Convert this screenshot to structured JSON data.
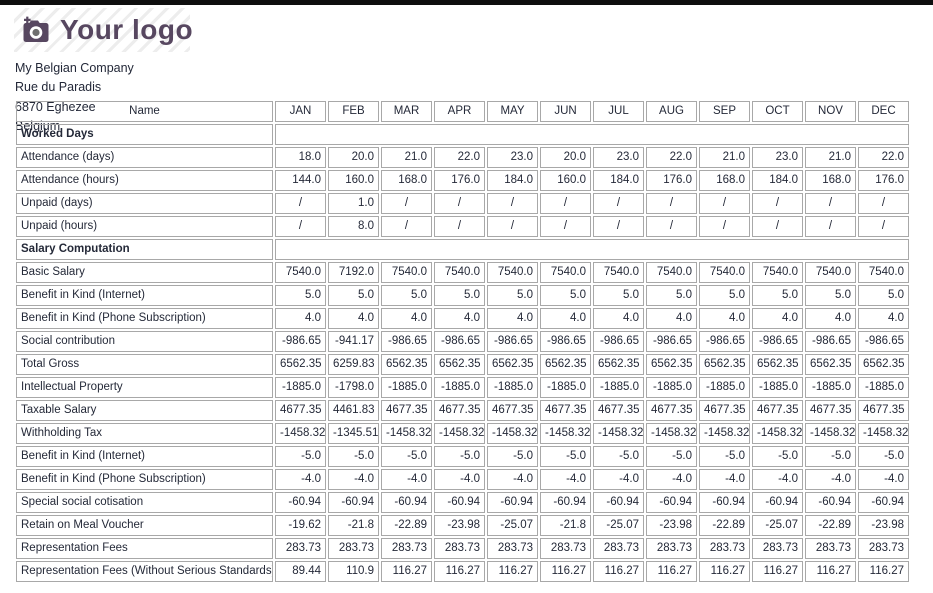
{
  "window": {
    "top_bar_color": "#0e0e0e"
  },
  "logo": {
    "text": "Your logo",
    "accent_color": "#574760",
    "icon": "camera-plus-icon"
  },
  "company": {
    "name": "My Belgian Company",
    "street": "Rue du Paradis",
    "city": "6870 Eghezee",
    "country": "Belgium"
  },
  "table": {
    "name_header": "Name",
    "months": [
      "JAN",
      "FEB",
      "MAR",
      "APR",
      "MAY",
      "JUN",
      "JUL",
      "AUG",
      "SEP",
      "OCT",
      "NOV",
      "DEC"
    ],
    "border_color": "#a8a8a8",
    "rows": [
      {
        "type": "section",
        "label": "Worked Days"
      },
      {
        "type": "data",
        "label": "Attendance (days)",
        "values": [
          "18.0",
          "20.0",
          "21.0",
          "22.0",
          "23.0",
          "20.0",
          "23.0",
          "22.0",
          "21.0",
          "23.0",
          "21.0",
          "22.0"
        ]
      },
      {
        "type": "data",
        "label": "Attendance (hours)",
        "values": [
          "144.0",
          "160.0",
          "168.0",
          "176.0",
          "184.0",
          "160.0",
          "184.0",
          "176.0",
          "168.0",
          "184.0",
          "168.0",
          "176.0"
        ]
      },
      {
        "type": "data",
        "label": "Unpaid (days)",
        "values": [
          "/",
          "1.0",
          "/",
          "/",
          "/",
          "/",
          "/",
          "/",
          "/",
          "/",
          "/",
          "/"
        ]
      },
      {
        "type": "data",
        "label": "Unpaid (hours)",
        "values": [
          "/",
          "8.0",
          "/",
          "/",
          "/",
          "/",
          "/",
          "/",
          "/",
          "/",
          "/",
          "/"
        ]
      },
      {
        "type": "section",
        "label": "Salary Computation"
      },
      {
        "type": "data",
        "label": "Basic Salary",
        "values": [
          "7540.0",
          "7192.0",
          "7540.0",
          "7540.0",
          "7540.0",
          "7540.0",
          "7540.0",
          "7540.0",
          "7540.0",
          "7540.0",
          "7540.0",
          "7540.0"
        ]
      },
      {
        "type": "data",
        "label": "Benefit in Kind (Internet)",
        "values": [
          "5.0",
          "5.0",
          "5.0",
          "5.0",
          "5.0",
          "5.0",
          "5.0",
          "5.0",
          "5.0",
          "5.0",
          "5.0",
          "5.0"
        ]
      },
      {
        "type": "data",
        "label": "Benefit in Kind (Phone Subscription)",
        "values": [
          "4.0",
          "4.0",
          "4.0",
          "4.0",
          "4.0",
          "4.0",
          "4.0",
          "4.0",
          "4.0",
          "4.0",
          "4.0",
          "4.0"
        ]
      },
      {
        "type": "data",
        "label": "Social contribution",
        "values": [
          "-986.65",
          "-941.17",
          "-986.65",
          "-986.65",
          "-986.65",
          "-986.65",
          "-986.65",
          "-986.65",
          "-986.65",
          "-986.65",
          "-986.65",
          "-986.65"
        ]
      },
      {
        "type": "data",
        "label": "Total Gross",
        "values": [
          "6562.35",
          "6259.83",
          "6562.35",
          "6562.35",
          "6562.35",
          "6562.35",
          "6562.35",
          "6562.35",
          "6562.35",
          "6562.35",
          "6562.35",
          "6562.35"
        ]
      },
      {
        "type": "data",
        "label": "Intellectual Property",
        "values": [
          "-1885.0",
          "-1798.0",
          "-1885.0",
          "-1885.0",
          "-1885.0",
          "-1885.0",
          "-1885.0",
          "-1885.0",
          "-1885.0",
          "-1885.0",
          "-1885.0",
          "-1885.0"
        ]
      },
      {
        "type": "data",
        "label": "Taxable Salary",
        "values": [
          "4677.35",
          "4461.83",
          "4677.35",
          "4677.35",
          "4677.35",
          "4677.35",
          "4677.35",
          "4677.35",
          "4677.35",
          "4677.35",
          "4677.35",
          "4677.35"
        ]
      },
      {
        "type": "data",
        "label": "Withholding Tax",
        "values": [
          "-1458.32",
          "-1345.51",
          "-1458.32",
          "-1458.32",
          "-1458.32",
          "-1458.32",
          "-1458.32",
          "-1458.32",
          "-1458.32",
          "-1458.32",
          "-1458.32",
          "-1458.32"
        ]
      },
      {
        "type": "data",
        "label": "Benefit in Kind (Internet)",
        "values": [
          "-5.0",
          "-5.0",
          "-5.0",
          "-5.0",
          "-5.0",
          "-5.0",
          "-5.0",
          "-5.0",
          "-5.0",
          "-5.0",
          "-5.0",
          "-5.0"
        ]
      },
      {
        "type": "data",
        "label": "Benefit in Kind (Phone Subscription)",
        "values": [
          "-4.0",
          "-4.0",
          "-4.0",
          "-4.0",
          "-4.0",
          "-4.0",
          "-4.0",
          "-4.0",
          "-4.0",
          "-4.0",
          "-4.0",
          "-4.0"
        ]
      },
      {
        "type": "data",
        "label": "Special social cotisation",
        "values": [
          "-60.94",
          "-60.94",
          "-60.94",
          "-60.94",
          "-60.94",
          "-60.94",
          "-60.94",
          "-60.94",
          "-60.94",
          "-60.94",
          "-60.94",
          "-60.94"
        ]
      },
      {
        "type": "data",
        "label": "Retain on Meal Voucher",
        "values": [
          "-19.62",
          "-21.8",
          "-22.89",
          "-23.98",
          "-25.07",
          "-21.8",
          "-25.07",
          "-23.98",
          "-22.89",
          "-25.07",
          "-22.89",
          "-23.98"
        ]
      },
      {
        "type": "data",
        "label": "Representation Fees",
        "values": [
          "283.73",
          "283.73",
          "283.73",
          "283.73",
          "283.73",
          "283.73",
          "283.73",
          "283.73",
          "283.73",
          "283.73",
          "283.73",
          "283.73"
        ]
      },
      {
        "type": "data",
        "label": "Representation Fees (Without Serious Standards)",
        "values": [
          "89.44",
          "110.9",
          "116.27",
          "116.27",
          "116.27",
          "116.27",
          "116.27",
          "116.27",
          "116.27",
          "116.27",
          "116.27",
          "116.27"
        ]
      }
    ]
  }
}
